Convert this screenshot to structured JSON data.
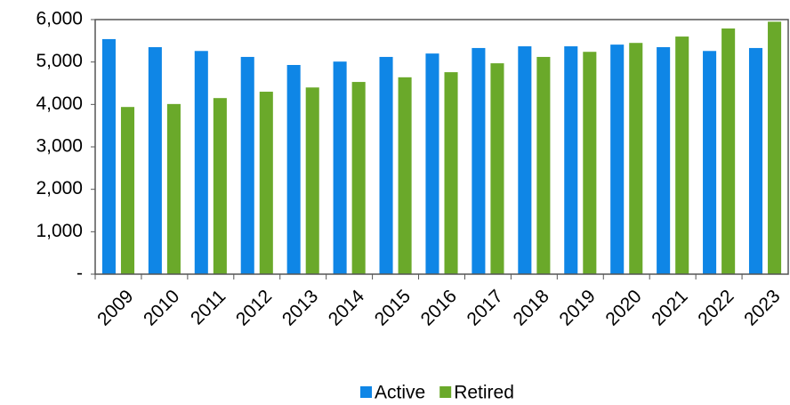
{
  "chart_data": {
    "type": "bar",
    "categories": [
      "2009",
      "2010",
      "2011",
      "2012",
      "2013",
      "2014",
      "2015",
      "2016",
      "2017",
      "2018",
      "2019",
      "2020",
      "2021",
      "2022",
      "2023"
    ],
    "series": [
      {
        "name": "Active",
        "color": "#0f86e6",
        "values": [
          5540,
          5350,
          5260,
          5120,
          4930,
          5010,
          5120,
          5200,
          5330,
          5370,
          5370,
          5410,
          5350,
          5260,
          5330
        ]
      },
      {
        "name": "Retired",
        "color": "#6aa92a",
        "values": [
          3940,
          4010,
          4150,
          4300,
          4400,
          4530,
          4640,
          4760,
          4970,
          5120,
          5240,
          5450,
          5600,
          5790,
          5950
        ]
      }
    ],
    "ylim": [
      0,
      6000
    ],
    "yticks": [
      {
        "value": 0,
        "label": "-"
      },
      {
        "value": 1000,
        "label": "1,000"
      },
      {
        "value": 2000,
        "label": "2,000"
      },
      {
        "value": 3000,
        "label": "3,000"
      },
      {
        "value": 4000,
        "label": "4,000"
      },
      {
        "value": 5000,
        "label": "5,000"
      },
      {
        "value": 6000,
        "label": "6,000"
      }
    ],
    "legend": "bottom"
  }
}
